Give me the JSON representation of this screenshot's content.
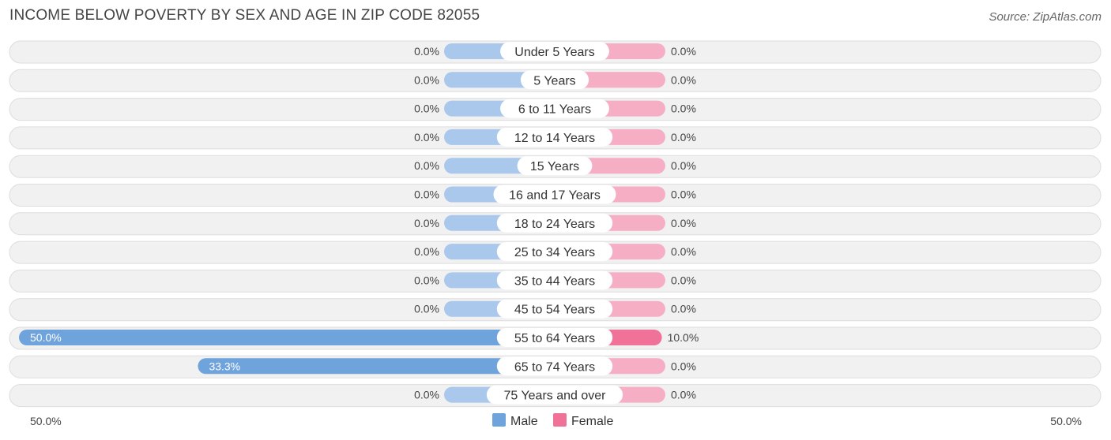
{
  "title": "INCOME BELOW POVERTY BY SEX AND AGE IN ZIP CODE 82055",
  "source": "Source: ZipAtlas.com",
  "colors": {
    "male": "#6fa3dc",
    "male_light": "#a9c8ec",
    "female": "#f07298",
    "female_light": "#f6aec5"
  },
  "chart_data": {
    "type": "bar",
    "orientation": "horizontal-diverging",
    "categories": [
      "Under 5 Years",
      "5 Years",
      "6 to 11 Years",
      "12 to 14 Years",
      "15 Years",
      "16 and 17 Years",
      "18 to 24 Years",
      "25 to 34 Years",
      "35 to 44 Years",
      "45 to 54 Years",
      "55 to 64 Years",
      "65 to 74 Years",
      "75 Years and over"
    ],
    "series": [
      {
        "name": "Male",
        "values": [
          0.0,
          0.0,
          0.0,
          0.0,
          0.0,
          0.0,
          0.0,
          0.0,
          0.0,
          0.0,
          50.0,
          33.3,
          0.0
        ]
      },
      {
        "name": "Female",
        "values": [
          0.0,
          0.0,
          0.0,
          0.0,
          0.0,
          0.0,
          0.0,
          0.0,
          0.0,
          0.0,
          10.0,
          0.0,
          0.0
        ]
      }
    ],
    "value_labels": {
      "male": [
        "0.0%",
        "0.0%",
        "0.0%",
        "0.0%",
        "0.0%",
        "0.0%",
        "0.0%",
        "0.0%",
        "0.0%",
        "0.0%",
        "50.0%",
        "33.3%",
        "0.0%"
      ],
      "female": [
        "0.0%",
        "0.0%",
        "0.0%",
        "0.0%",
        "0.0%",
        "0.0%",
        "0.0%",
        "0.0%",
        "0.0%",
        "0.0%",
        "10.0%",
        "0.0%",
        "0.0%"
      ]
    },
    "axis": {
      "left_label": "50.0%",
      "right_label": "50.0%",
      "max": 50.0
    },
    "legend": {
      "position": "bottom-center",
      "items": [
        "Male",
        "Female"
      ]
    }
  }
}
